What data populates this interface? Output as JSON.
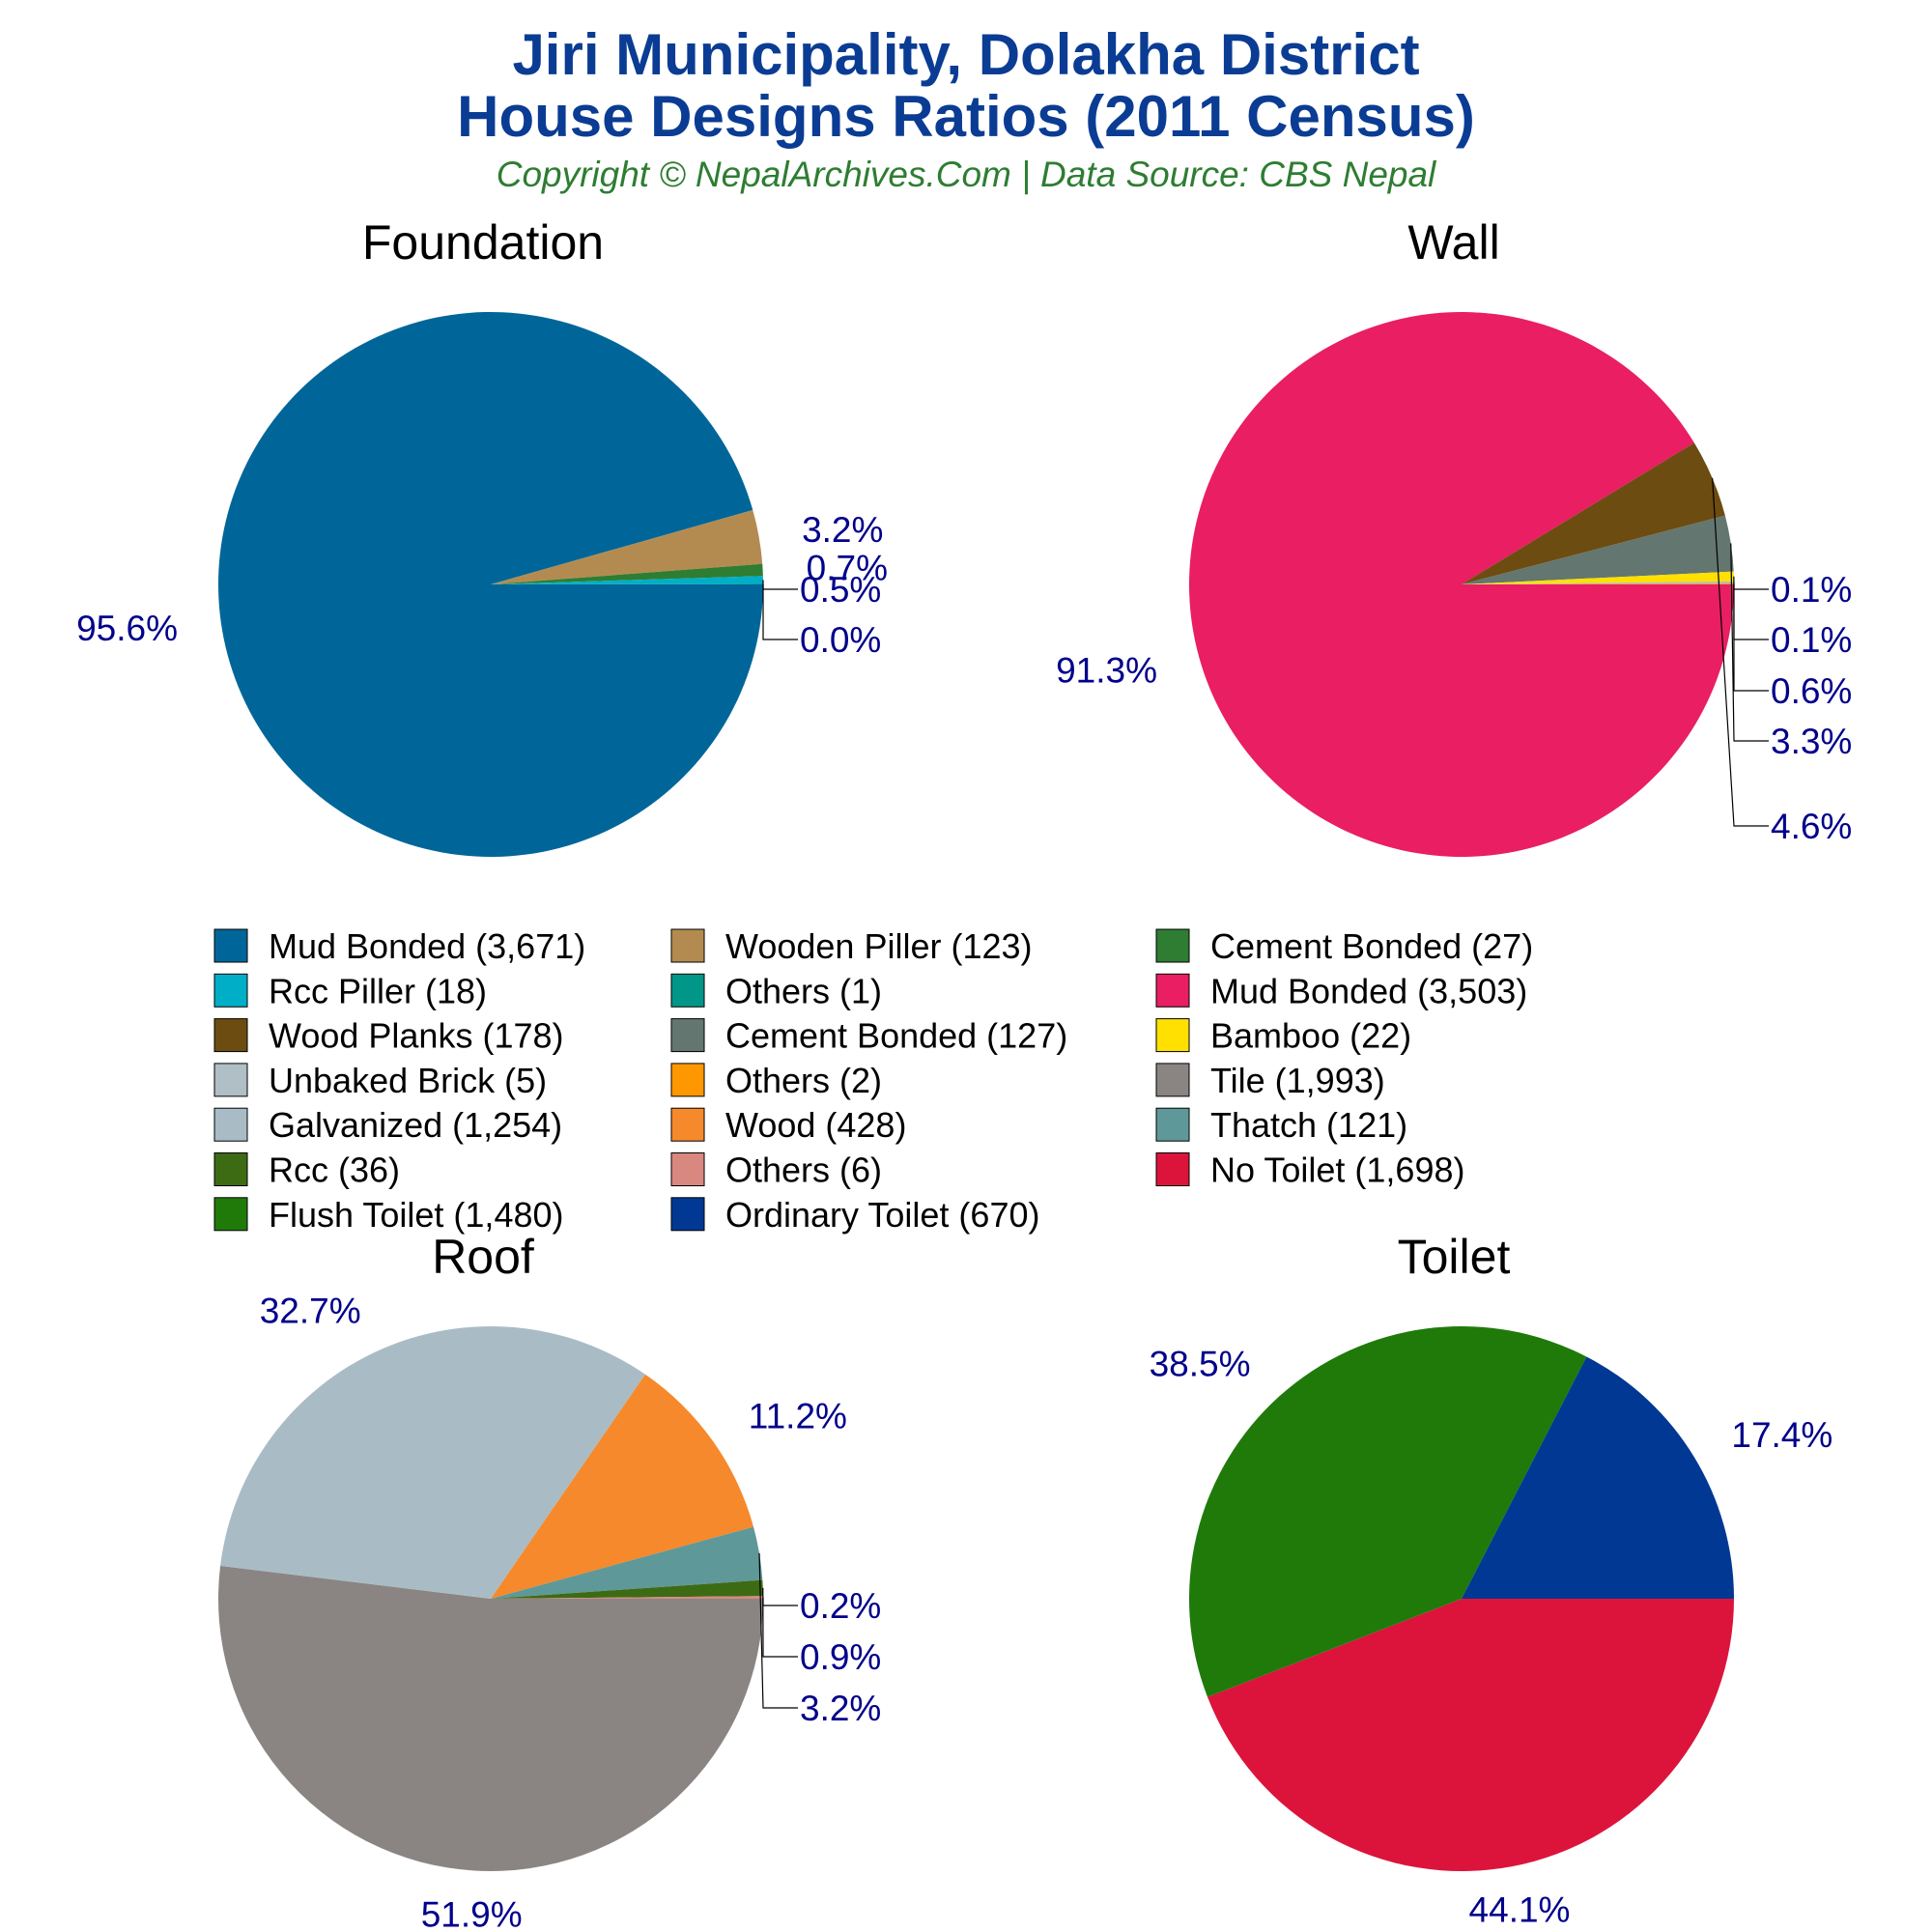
{
  "header": {
    "title_line1": "Jiri Municipality, Dolakha District",
    "title_line2": "House Designs Ratios (2011 Census)",
    "subtitle": "Copyright © NepalArchives.Com | Data Source: CBS Nepal"
  },
  "chart_data": [
    {
      "type": "pie",
      "title": "Foundation",
      "categories": [
        "Mud Bonded",
        "Wooden Piller",
        "Cement Bonded",
        "Rcc Piller",
        "Others"
      ],
      "values": [
        3671,
        123,
        27,
        18,
        1
      ],
      "labels": [
        "95.6%",
        "3.2%",
        "0.7%",
        "0.5%",
        "0.0%"
      ],
      "colors": [
        "#006699",
        "#b38b50",
        "#2e7d32",
        "#00aec7",
        "#009688"
      ]
    },
    {
      "type": "pie",
      "title": "Wall",
      "categories": [
        "Mud Bonded",
        "Wood Planks",
        "Cement Bonded",
        "Bamboo",
        "Unbaked Brick",
        "Others"
      ],
      "values": [
        3503,
        178,
        127,
        22,
        5,
        2
      ],
      "labels": [
        "91.3%",
        "4.6%",
        "3.3%",
        "0.6%",
        "0.1%",
        "0.1%"
      ],
      "colors": [
        "#e91e63",
        "#6d4c11",
        "#63766f",
        "#ffe000",
        "#b0bec5",
        "#ff9800"
      ]
    },
    {
      "type": "pie",
      "title": "Roof",
      "categories": [
        "Tile",
        "Galvanized",
        "Wood",
        "Thatch",
        "Rcc",
        "Others"
      ],
      "values": [
        1993,
        1254,
        428,
        121,
        36,
        6
      ],
      "labels": [
        "51.9%",
        "32.7%",
        "11.2%",
        "3.2%",
        "0.9%",
        "0.2%"
      ],
      "colors": [
        "#8a8582",
        "#a9bcc5",
        "#f6892b",
        "#5f9898",
        "#3d6b14",
        "#d98880"
      ]
    },
    {
      "type": "pie",
      "title": "Toilet",
      "categories": [
        "No Toilet",
        "Flush Toilet",
        "Ordinary Toilet"
      ],
      "values": [
        1698,
        1480,
        670
      ],
      "labels": [
        "44.1%",
        "38.5%",
        "17.4%"
      ],
      "colors": [
        "#dc143c",
        "#1f7a0a",
        "#003893"
      ]
    }
  ],
  "legend": {
    "columns": [
      [
        {
          "label": "Mud Bonded (3,671)",
          "color": "#006699"
        },
        {
          "label": "Rcc Piller (18)",
          "color": "#00aec7"
        },
        {
          "label": "Wood Planks (178)",
          "color": "#6d4c11"
        },
        {
          "label": "Unbaked Brick (5)",
          "color": "#b0bec5"
        },
        {
          "label": "Galvanized (1,254)",
          "color": "#a9bcc5"
        },
        {
          "label": "Rcc (36)",
          "color": "#3d6b14"
        },
        {
          "label": "Flush Toilet (1,480)",
          "color": "#1f7a0a"
        }
      ],
      [
        {
          "label": "Wooden Piller (123)",
          "color": "#b38b50"
        },
        {
          "label": "Others (1)",
          "color": "#009688"
        },
        {
          "label": "Cement Bonded (127)",
          "color": "#63766f"
        },
        {
          "label": "Others (2)",
          "color": "#ff9800"
        },
        {
          "label": "Wood (428)",
          "color": "#f6892b"
        },
        {
          "label": "Others (6)",
          "color": "#d98880"
        },
        {
          "label": "Ordinary Toilet (670)",
          "color": "#003893"
        }
      ],
      [
        {
          "label": "Cement Bonded (27)",
          "color": "#2e7d32"
        },
        {
          "label": "Mud Bonded (3,503)",
          "color": "#e91e63"
        },
        {
          "label": "Bamboo (22)",
          "color": "#ffe000"
        },
        {
          "label": "Tile (1,993)",
          "color": "#8a8582"
        },
        {
          "label": "Thatch (121)",
          "color": "#5f9898"
        },
        {
          "label": "No Toilet (1,698)",
          "color": "#dc143c"
        }
      ]
    ]
  }
}
